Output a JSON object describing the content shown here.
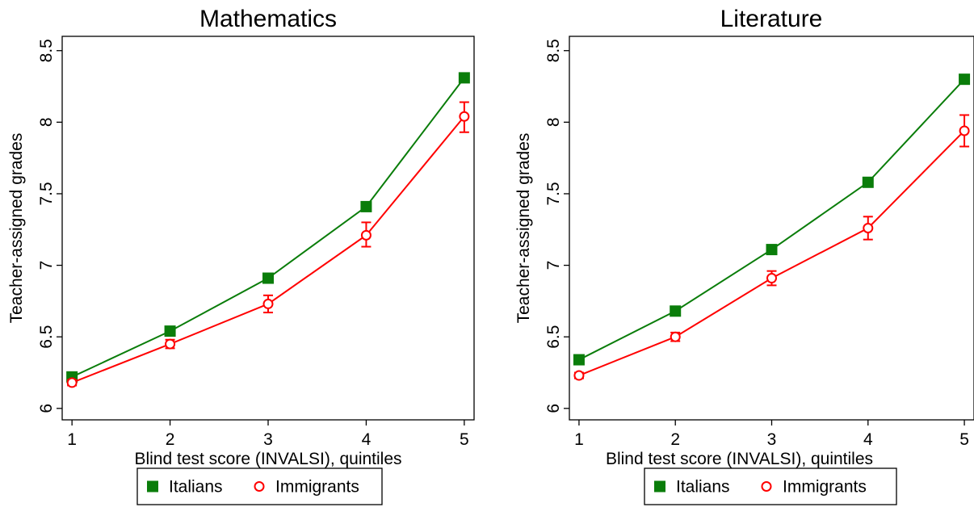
{
  "chart_data": [
    {
      "type": "line",
      "title": "Mathematics",
      "xlabel": "Blind test score (INVALSI), quintiles",
      "ylabel": "Teacher-assigned grades",
      "x": [
        1,
        2,
        3,
        4,
        5
      ],
      "xlim": [
        0.9,
        5.1
      ],
      "ylim": [
        5.92,
        8.6
      ],
      "xticks": [
        "1",
        "2",
        "3",
        "4",
        "5"
      ],
      "yticks": [
        "6",
        "6.5",
        "7",
        "7.5",
        "8",
        "8.5"
      ],
      "grid": false,
      "legend_position": "bottom",
      "series": [
        {
          "name": "Italians",
          "color": "#0a7d0a",
          "marker": "square",
          "values": [
            6.22,
            6.54,
            6.91,
            7.41,
            8.31
          ]
        },
        {
          "name": "Immigrants",
          "color": "#ff0000",
          "marker": "circle",
          "values": [
            6.18,
            6.45,
            6.73,
            7.21,
            8.04
          ],
          "ci_low": [
            6.16,
            6.42,
            6.67,
            7.13,
            7.93
          ],
          "ci_high": [
            6.2,
            6.48,
            6.79,
            7.3,
            8.14
          ]
        }
      ]
    },
    {
      "type": "line",
      "title": "Literature",
      "xlabel": "Blind test score (INVALSI), quintiles",
      "ylabel": "Teacher-assigned grades",
      "x": [
        1,
        2,
        3,
        4,
        5
      ],
      "xlim": [
        0.9,
        5.1
      ],
      "ylim": [
        5.92,
        8.6
      ],
      "xticks": [
        "1",
        "2",
        "3",
        "4",
        "5"
      ],
      "yticks": [
        "6",
        "6.5",
        "7",
        "7.5",
        "8",
        "8.5"
      ],
      "grid": false,
      "legend_position": "bottom",
      "series": [
        {
          "name": "Italians",
          "color": "#0a7d0a",
          "marker": "square",
          "values": [
            6.34,
            6.68,
            7.11,
            7.58,
            8.3
          ]
        },
        {
          "name": "Immigrants",
          "color": "#ff0000",
          "marker": "circle",
          "values": [
            6.23,
            6.5,
            6.91,
            7.26,
            7.94
          ],
          "ci_low": [
            6.21,
            6.47,
            6.86,
            7.18,
            7.83
          ],
          "ci_high": [
            6.25,
            6.53,
            6.96,
            7.34,
            8.05
          ]
        }
      ]
    }
  ]
}
